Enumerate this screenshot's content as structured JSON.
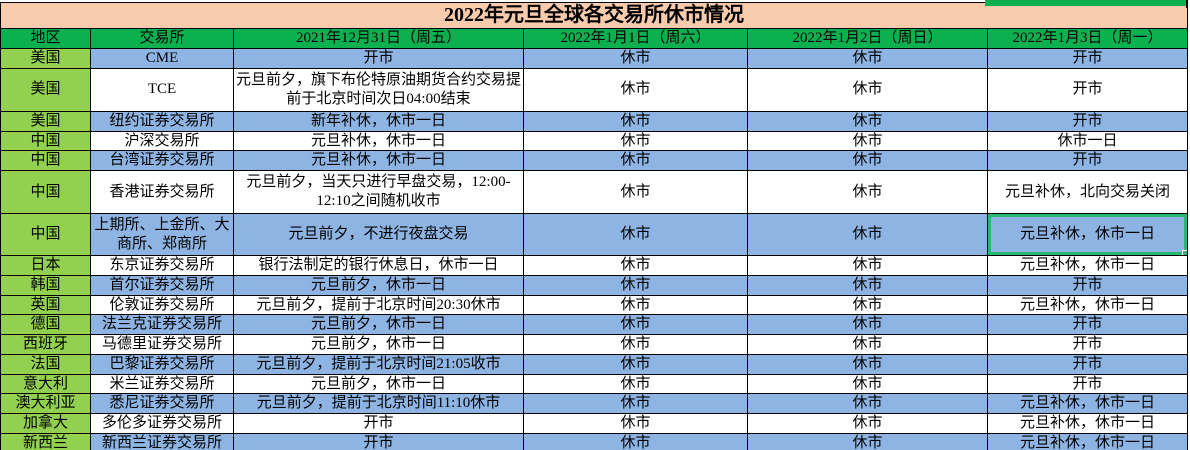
{
  "title": "2022年元旦全球各交易所休市情况",
  "colors": {
    "title-bg": "#F8CBAD",
    "header-green": "#0CB04F",
    "region-green": "#92D050",
    "row-blue": "#8DB4E2",
    "select-green": "#2BB673",
    "grid-border": "#000000"
  },
  "table": {
    "headers": [
      "地区",
      "交易所",
      "2021年12月31日（周五）",
      "2022年1月1日（周六）",
      "2022年1月2日（周日）",
      "2022年1月3日（周一）"
    ],
    "rows": [
      {
        "region": "美国",
        "exchange": "CME",
        "dec31": "开市",
        "jan1": "休市",
        "jan2": "休市",
        "jan3": "开市"
      },
      {
        "region": "美国",
        "exchange": "TCE",
        "dec31": "元旦前夕，旗下布伦特原油期货合约交易提前于北京时间次日04:00结束",
        "jan1": "休市",
        "jan2": "休市",
        "jan3": "开市"
      },
      {
        "region": "美国",
        "exchange": "纽约证券交易所",
        "dec31": "新年补休，休市一日",
        "jan1": "休市",
        "jan2": "休市",
        "jan3": "开市"
      },
      {
        "region": "中国",
        "exchange": "沪深交易所",
        "dec31": "元旦补休，休市一日",
        "jan1": "休市",
        "jan2": "休市",
        "jan3": "休市一日"
      },
      {
        "region": "中国",
        "exchange": "台湾证券交易所",
        "dec31": "元旦补休，休市一日",
        "jan1": "休市",
        "jan2": "休市",
        "jan3": "开市"
      },
      {
        "region": "中国",
        "exchange": "香港证券交易所",
        "dec31": "元旦前夕，当天只进行早盘交易，12:00-12:10之间随机收市",
        "jan1": "休市",
        "jan2": "休市",
        "jan3": "元旦补休，北向交易关闭"
      },
      {
        "region": "中国",
        "exchange": "上期所、上金所、大商所、郑商所",
        "dec31": "元旦前夕，不进行夜盘交易",
        "jan1": "休市",
        "jan2": "休市",
        "jan3": "元旦补休，休市一日"
      },
      {
        "region": "日本",
        "exchange": "东京证券交易所",
        "dec31": "银行法制定的银行休息日，休市一日",
        "jan1": "休市",
        "jan2": "休市",
        "jan3": "元旦补休，休市一日"
      },
      {
        "region": "韩国",
        "exchange": "首尔证券交易所",
        "dec31": "元旦前夕，休市一日",
        "jan1": "休市",
        "jan2": "休市",
        "jan3": "开市"
      },
      {
        "region": "英国",
        "exchange": "伦敦证券交易所",
        "dec31": "元旦前夕，提前于北京时间20:30休市",
        "jan1": "休市",
        "jan2": "休市",
        "jan3": "元旦补休，休市一日"
      },
      {
        "region": "德国",
        "exchange": "法兰克证券交易所",
        "dec31": "元旦前夕，休市一日",
        "jan1": "休市",
        "jan2": "休市",
        "jan3": "开市"
      },
      {
        "region": "西班牙",
        "exchange": "马德里证券交易所",
        "dec31": "元旦前夕，休市一日",
        "jan1": "休市",
        "jan2": "休市",
        "jan3": "开市"
      },
      {
        "region": "法国",
        "exchange": "巴黎证券交易所",
        "dec31": "元旦前夕，提前于北京时间21:05收市",
        "jan1": "休市",
        "jan2": "休市",
        "jan3": "开市"
      },
      {
        "region": "意大利",
        "exchange": "米兰证券交易所",
        "dec31": "元旦前夕，休市一日",
        "jan1": "休市",
        "jan2": "休市",
        "jan3": "开市"
      },
      {
        "region": "澳大利亚",
        "exchange": "悉尼证券交易所",
        "dec31": "元旦前夕，提前于北京时间11:10休市",
        "jan1": "休市",
        "jan2": "休市",
        "jan3": "元旦补休，休市一日"
      },
      {
        "region": "加拿大",
        "exchange": "多伦多证券交易所",
        "dec31": "开市",
        "jan1": "休市",
        "jan2": "休市",
        "jan3": "元旦补休，休市一日"
      },
      {
        "region": "新西兰",
        "exchange": "新西兰证券交易所",
        "dec31": "开市",
        "jan1": "休市",
        "jan2": "休市",
        "jan3": "元旦补休，休市一日"
      }
    ]
  },
  "selection": {
    "row_index": 6,
    "column_key": "jan3",
    "selected_value": "元旦补休，休市一日"
  }
}
